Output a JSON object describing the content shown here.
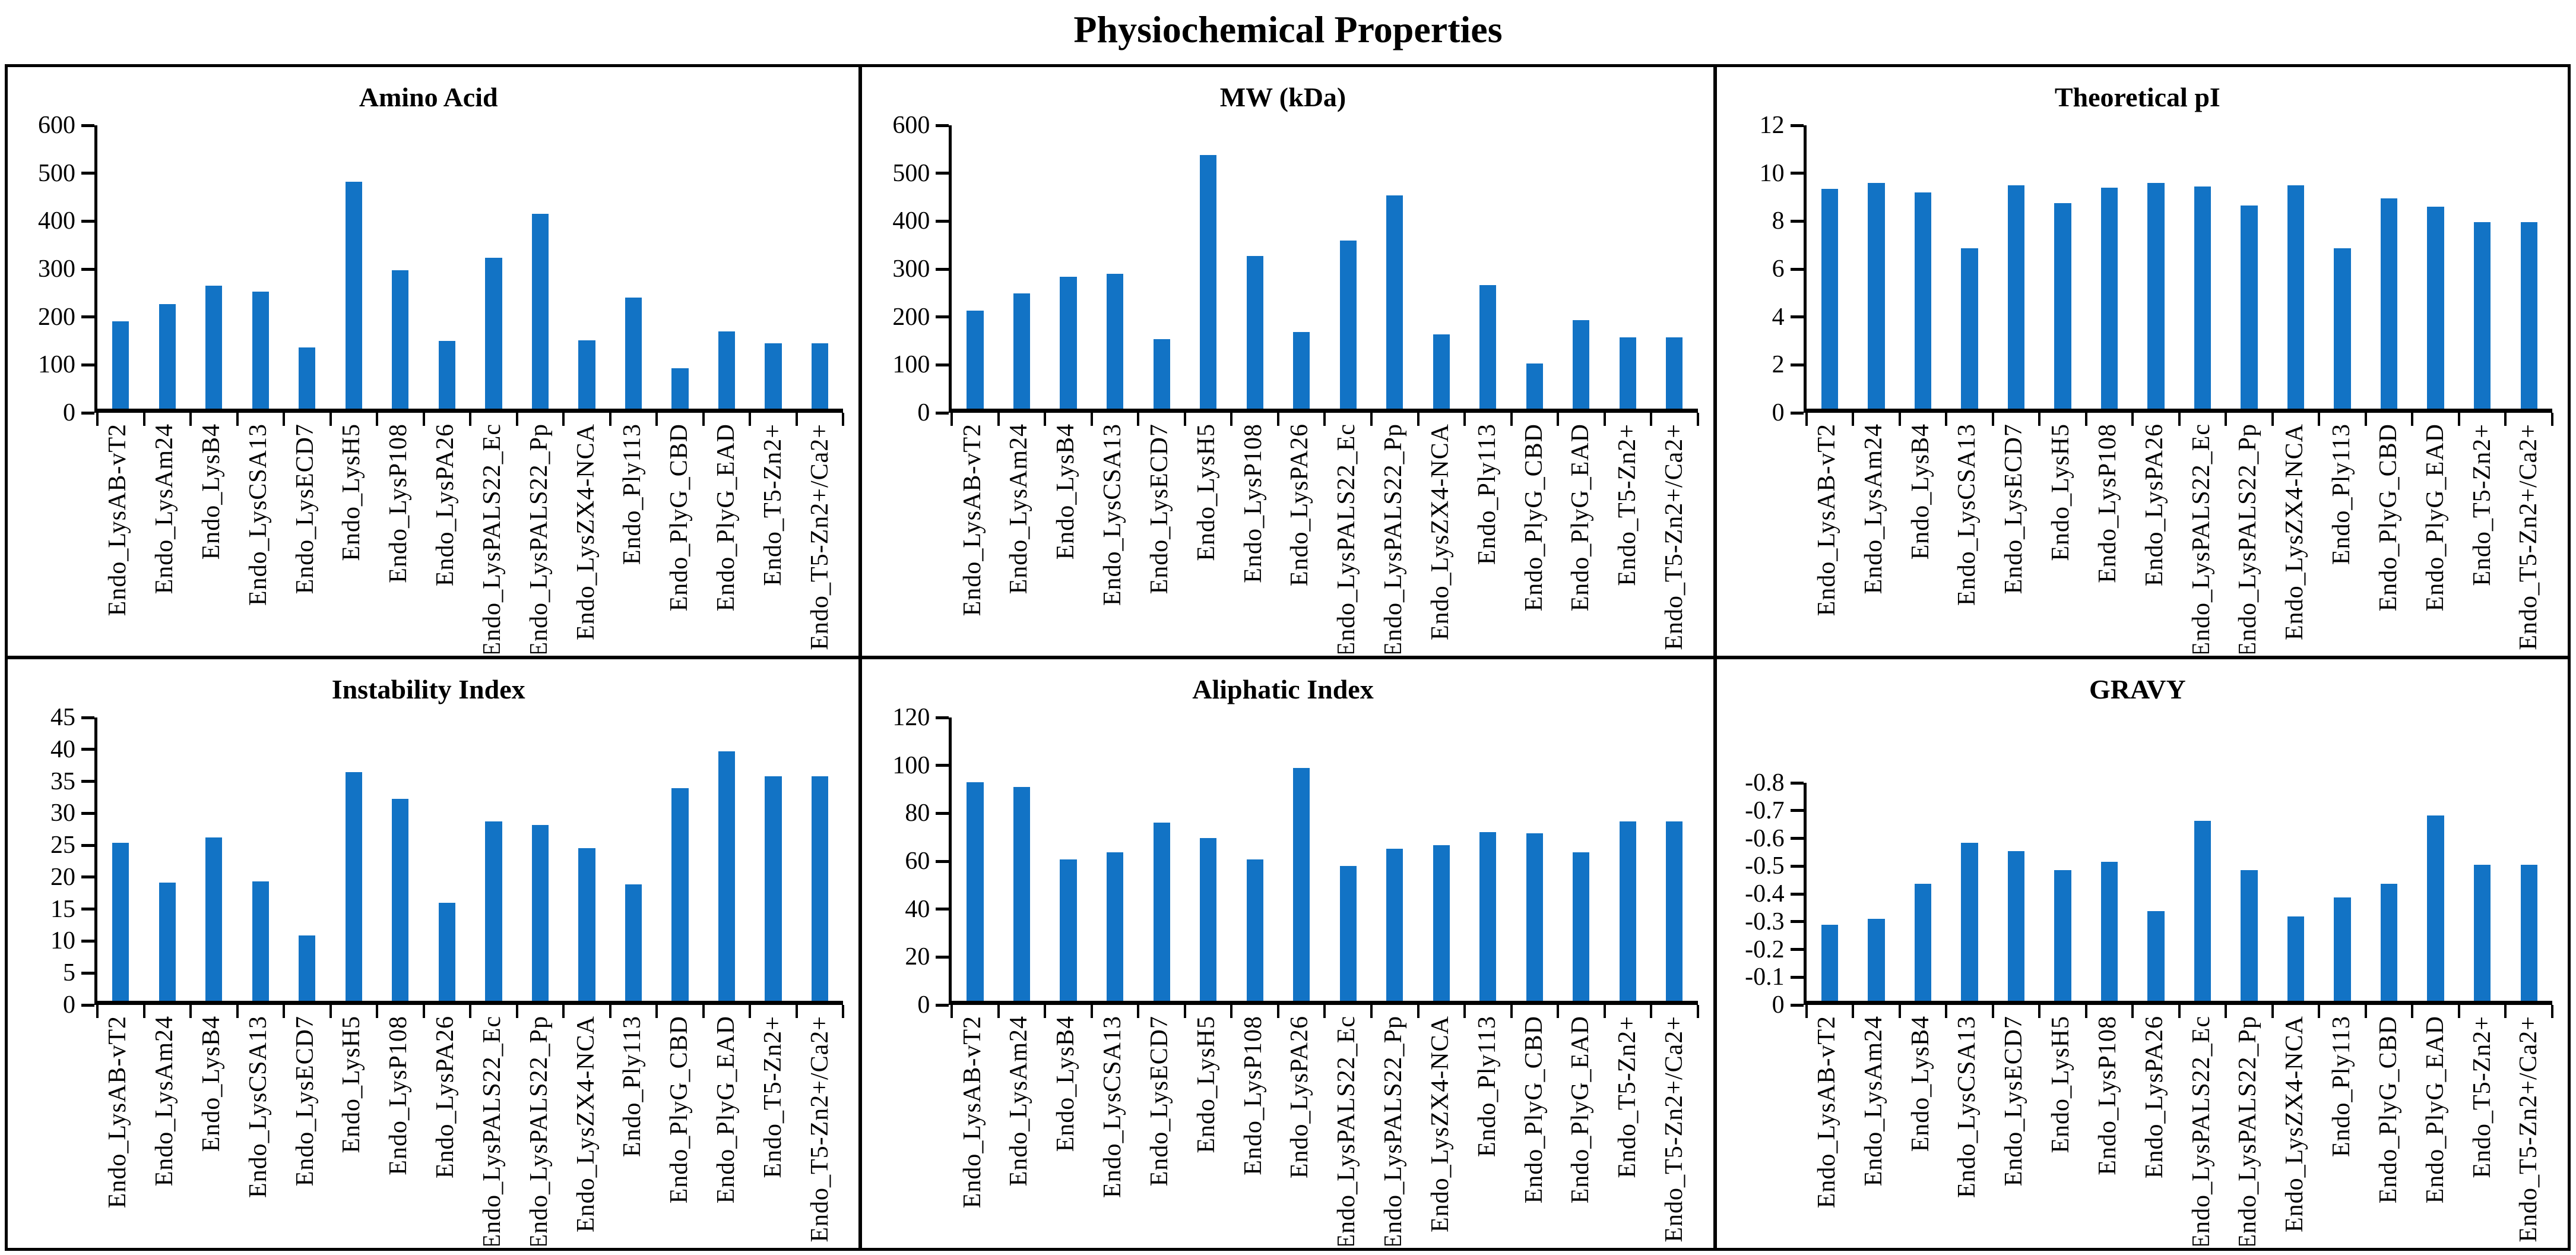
{
  "figure_title": "Physiochemical Properties",
  "colors": {
    "bar": "#1273C5",
    "axis": "#000000",
    "panel_border": "#000000",
    "background": "#FFFFFF",
    "text": "#000000"
  },
  "chart_data": {
    "type": "bar",
    "layout": "2x3 small multiples",
    "grid": false,
    "legend": null,
    "categories": [
      "Endo_LysAB-vT2",
      "Endo_LysAm24",
      "Endo_LysB4",
      "Endo_LysCSA13",
      "Endo_LysECD7",
      "Endo_LysH5",
      "Endo_LysP108",
      "Endo_LysPA26",
      "Endo_LysPALS22_Ec",
      "Endo_LysPALS22_Pp",
      "Endo_LysZX4-NCA",
      "Endo_Ply113",
      "Endo_PlyG_CBD",
      "Endo_PlyG_EAD",
      "Endo_T5-Zn2+",
      "Endo_T5-Zn2+/Ca2+"
    ],
    "panels": [
      {
        "title": "Amino Acid",
        "ylim": [
          0,
          600
        ],
        "yticks": [
          "600",
          "500",
          "400",
          "300",
          "200",
          "100",
          "0"
        ],
        "values": [
          185,
          222,
          260,
          248,
          130,
          480,
          293,
          144,
          320,
          412,
          145,
          235,
          85,
          164,
          138,
          138
        ]
      },
      {
        "title": "MW (kDa)",
        "ylim": [
          0,
          600
        ],
        "yticks": [
          "600",
          "500",
          "400",
          "300",
          "200",
          "100",
          "0"
        ],
        "values": [
          207,
          244,
          279,
          285,
          147,
          537,
          323,
          162,
          356,
          451,
          157,
          262,
          95,
          187,
          151,
          151
        ]
      },
      {
        "title": "Theoretical pI",
        "ylim": [
          0,
          12
        ],
        "yticks": [
          "12",
          "10",
          "8",
          "6",
          "4",
          "2",
          "0"
        ],
        "values": [
          9.3,
          9.55,
          9.15,
          6.8,
          9.45,
          8.7,
          9.35,
          9.55,
          9.4,
          8.6,
          9.45,
          6.8,
          8.9,
          8.55,
          7.9,
          7.9
        ]
      },
      {
        "title": "Instability Index",
        "ylim": [
          0,
          45
        ],
        "yticks": [
          "45",
          "40",
          "35",
          "30",
          "25",
          "20",
          "15",
          "10",
          "5",
          "0"
        ],
        "values": [
          25.1,
          18.8,
          25.9,
          19.0,
          10.4,
          36.3,
          32.1,
          15.6,
          28.5,
          27.9,
          24.2,
          18.5,
          33.8,
          39.6,
          35.7,
          35.7
        ]
      },
      {
        "title": "Aliphatic Index",
        "ylim": [
          0,
          120
        ],
        "yticks": [
          "120",
          "100",
          "80",
          "60",
          "40",
          "20",
          "0"
        ],
        "values": [
          92.5,
          90.5,
          60,
          63,
          75.5,
          69,
          60,
          98.5,
          57,
          64.5,
          66,
          71.5,
          71,
          63,
          76,
          76
        ]
      },
      {
        "title": "GRAVY",
        "ylim": [
          0,
          -0.8
        ],
        "yticks": [
          "-0.8",
          "-0.7",
          "-0.6",
          "-0.5",
          "-0.4",
          "-0.3",
          "-0.2",
          "-0.1",
          "0"
        ],
        "values": [
          -0.28,
          -0.3,
          -0.43,
          -0.58,
          -0.55,
          -0.48,
          -0.51,
          -0.33,
          -0.66,
          -0.48,
          -0.31,
          -0.38,
          -0.43,
          -0.68,
          -0.5,
          -0.5
        ]
      }
    ]
  }
}
